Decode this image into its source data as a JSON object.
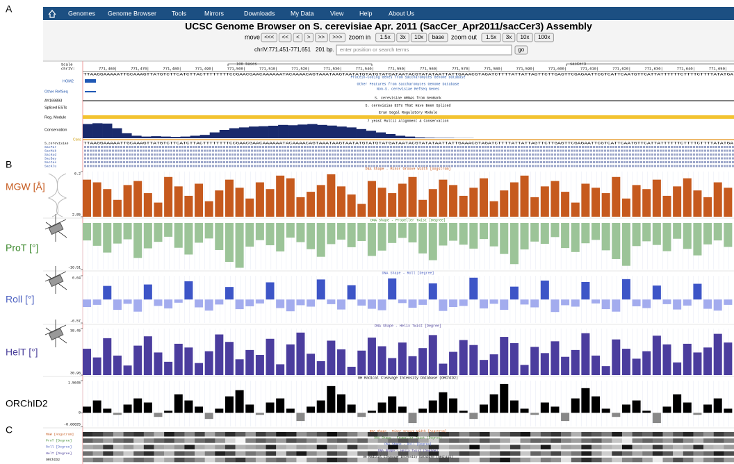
{
  "panel_labels": [
    "A",
    "B",
    "C"
  ],
  "nav": {
    "items": [
      "Genomes",
      "Genome Browser",
      "Tools",
      "Mirrors",
      "Downloads",
      "My Data",
      "View",
      "Help",
      "About Us"
    ]
  },
  "header": {
    "title": "UCSC Genome Browser on S. cerevisiae Apr. 2011 (SacCer_Apr2011/sacCer3) Assembly"
  },
  "controls": {
    "move_label": "move",
    "move_buttons": [
      "<<<",
      "<<",
      "<",
      ">",
      ">>",
      ">>>"
    ],
    "zoom_in_label": "zoom in",
    "zoom_in_buttons": [
      "1.5x",
      "3x",
      "10x",
      "base"
    ],
    "zoom_out_label": "zoom out",
    "zoom_out_buttons": [
      "1.5x",
      "3x",
      "10x",
      "100x"
    ],
    "position": "chrIV:771,451-771,651",
    "size": "201 bp.",
    "search_placeholder": "enter position or search terms",
    "go": "go"
  },
  "browser": {
    "scale_label": "Scale",
    "chrom_label": "chrIV:",
    "scale_bar": "100 bases",
    "assembly": "sacCer3",
    "ruler": [
      "771,460|",
      "771,470|",
      "771,480|",
      "771,490|",
      "771,500|",
      "771,510|",
      "771,520|",
      "771,530|",
      "771,540|",
      "771,550|",
      "771,560|",
      "771,570|",
      "771,580|",
      "771,590|",
      "771,600|",
      "771,610|",
      "771,620|",
      "771,630|",
      "771,640|",
      "771,650|"
    ],
    "left_labels": [
      "HOM2",
      "Other RefSeq",
      "AY169893",
      "Spliced ESTs",
      "Reg. Module",
      "Conservation"
    ],
    "track_titles": [
      "Protein-Coding Genes from Saccharomyces Genome Database",
      "Other Features from Saccharomyces Genome Database",
      "Non-S. cerevisiae RefSeq Genes",
      "S. cerevisiae mRNAs from GenBank",
      "S. cerevisiae ESTs That Have Been Spliced",
      "Eran Segal Regulatory Module",
      "7 yeast Multiz Alignment & Conservation"
    ],
    "conservation": {
      "ylim": [
        0,
        1
      ],
      "color": "#1a2a6c",
      "values": [
        0.85,
        0.9,
        0.88,
        0.6,
        0.3,
        0.15,
        0.1,
        0.12,
        0.1,
        0.08,
        0.1,
        0.15,
        0.2,
        0.35,
        0.5,
        0.6,
        0.65,
        0.7,
        0.72,
        0.75,
        0.8,
        0.78,
        0.82,
        0.85,
        0.8,
        0.76,
        0.7,
        0.65,
        0.55,
        0.45,
        0.35,
        0.25,
        0.15,
        0.1,
        0.05,
        0.03,
        0.02,
        0.02,
        0.01,
        0.01
      ]
    },
    "cons_label": "Cons",
    "alignment": {
      "species": [
        "S_cerevisiae",
        "SacPar",
        "SacMik",
        "SacKud",
        "SacBay",
        "SacCas",
        "SacKlu"
      ],
      "sequence": "TTAAGGAAAAATTGCAAAGTTATGTCTTCATCTTACTTTTTTTTCCGAACGAACAAAAAATACAAAACAGTAAATAAGTAATATGTATGTATGATAATACGTATATAATTATTGAAACGTAGATCTTTTATTATTAGTTCTTGAGTTCGAGAATTCGTCATTCAATGTTCATTATTTTTTCTTTTCTTTTATATGA"
    }
  },
  "shape_tracks": [
    {
      "name": "MGW [Å]",
      "label": "MGW [Angstrom]",
      "title": "DNA Shape - Minor Groove Width [Angstrom]",
      "color": "#c65a1e",
      "name_color": "#c65a1e",
      "ylim": [
        2.85,
        6.2
      ],
      "yticks": [
        6.2,
        2.85
      ],
      "values": [
        5.6,
        5.4,
        4.9,
        4.1,
        5.2,
        5.5,
        4.6,
        3.9,
        5.8,
        5.1,
        4.4,
        5.3,
        4.0,
        4.8,
        5.6,
        5.0,
        4.2,
        5.4,
        4.9,
        5.9,
        5.7,
        4.3,
        4.7,
        5.2,
        6.0,
        5.1,
        4.5,
        3.8,
        5.5,
        5.0,
        4.6,
        5.3,
        5.8,
        4.1,
        4.9,
        5.6,
        5.2,
        4.4,
        5.0,
        5.7,
        4.0,
        4.8,
        5.4,
        5.9,
        4.3,
        5.1,
        5.5,
        4.7,
        3.9,
        5.3,
        5.0,
        4.6,
        5.8,
        4.2,
        5.2,
        4.9,
        5.6,
        4.4,
        5.1,
        5.7,
        4.8,
        4.3,
        5.4,
        5.0
      ]
    },
    {
      "name": "ProT [°]",
      "label": "ProT [Degree]",
      "title": "DNA Shape - Propeller Twist [Degree]",
      "color": "#9cc498",
      "name_color": "#3e8a2e",
      "ylim": [
        -16.51,
        0
      ],
      "yticks": [
        -16.51
      ],
      "values": [
        -6.2,
        -8.1,
        -10.5,
        -7.3,
        -5.8,
        -12.4,
        -9.0,
        -6.7,
        -4.9,
        -8.8,
        -11.2,
        -7.0,
        -5.5,
        -9.6,
        -13.8,
        -15.9,
        -8.4,
        -6.1,
        -7.9,
        -10.1,
        -5.2,
        -6.8,
        -9.3,
        -12.0,
        -7.5,
        -5.9,
        -8.6,
        -6.4,
        -11.7,
        -9.8,
        -7.1,
        -5.3,
        -6.9,
        -10.8,
        -13.2,
        -8.0,
        -6.3,
        -7.7,
        -9.1,
        -5.7,
        -8.3,
        -11.0,
        -14.6,
        -9.4,
        -6.6,
        -7.4,
        -5.0,
        -8.9,
        -10.3,
        -7.2,
        -6.0,
        -9.7,
        -12.8,
        -15.2,
        -8.2,
        -6.5,
        -7.8,
        -10.0,
        -5.6,
        -9.2,
        -11.5,
        -7.6,
        -6.2,
        -8.5
      ]
    },
    {
      "name": "Roll [°]",
      "label": "Roll [Degree]",
      "title": "DNA Shape - Roll [Degree]",
      "color": "#3d55c7",
      "negative_color": "#a3acee",
      "name_color": "#4a5fc1",
      "ylim": [
        -6.57,
        6.64
      ],
      "yticks": [
        6.64,
        -6.57
      ],
      "values": [
        -2.1,
        -1.5,
        3.8,
        -2.9,
        -1.2,
        -3.4,
        4.2,
        -1.8,
        -2.5,
        -0.9,
        5.1,
        -2.2,
        -3.1,
        -1.4,
        3.5,
        -2.7,
        -1.9,
        -1.1,
        4.8,
        -2.4,
        -3.3,
        -1.6,
        -2.0,
        5.6,
        -1.3,
        -2.8,
        4.0,
        -1.7,
        -2.6,
        -3.0,
        5.9,
        -1.0,
        -2.3,
        -1.5,
        4.5,
        -3.2,
        -2.1,
        -1.8,
        6.1,
        -2.5,
        -1.2,
        -2.9,
        3.6,
        -1.4,
        -2.2,
        5.3,
        -3.5,
        -1.6,
        -2.0,
        4.9,
        -1.1,
        -2.7,
        -3.4,
        5.7,
        -1.9,
        -2.4,
        3.9,
        -1.3,
        -2.8,
        -1.7,
        4.4,
        -2.6,
        -3.1,
        -1.5
      ]
    },
    {
      "name": "HelT [°]",
      "label": "HelT [Degree]",
      "title": "DNA Shape - Helix Twist [Degree]",
      "color": "#4b3d9e",
      "name_color": "#4a3f9a",
      "ylim": [
        30.96,
        38.45
      ],
      "yticks": [
        38.45,
        30.96
      ],
      "values": [
        35.2,
        33.8,
        36.9,
        34.1,
        32.5,
        35.7,
        37.2,
        34.6,
        33.1,
        36.0,
        35.4,
        32.9,
        34.8,
        37.5,
        36.3,
        33.5,
        35.0,
        34.2,
        36.8,
        32.7,
        35.9,
        37.8,
        34.4,
        33.2,
        36.5,
        35.1,
        32.3,
        34.9,
        37.0,
        35.6,
        33.7,
        36.2,
        34.0,
        35.3,
        37.4,
        32.8,
        34.7,
        36.6,
        35.8,
        33.4,
        34.3,
        37.1,
        36.1,
        32.6,
        35.5,
        34.5,
        36.4,
        33.9,
        35.0,
        37.7,
        34.1,
        32.4,
        36.7,
        35.2,
        33.6,
        34.8,
        37.3,
        35.9,
        33.0,
        36.0,
        34.6,
        35.4,
        37.6,
        36.2
      ]
    },
    {
      "name": "ORChID2",
      "label": "ORChID2",
      "title": "OH Radical Cleavage Intensity Database (ORChID2)",
      "color": "#000000",
      "negative_color": "#888888",
      "name_color": "#000000",
      "ylim": [
        -0.66625,
        1.5645
      ],
      "yticks": [
        1.5645,
        0,
        -0.66625
      ],
      "values": [
        0.3,
        0.6,
        0.2,
        -0.1,
        0.4,
        0.7,
        0.5,
        -0.2,
        0.1,
        0.9,
        0.6,
        0.3,
        -0.3,
        0.2,
        0.8,
        1.1,
        0.4,
        -0.1,
        0.5,
        0.7,
        0.2,
        -0.4,
        0.3,
        0.6,
        1.3,
        0.9,
        0.4,
        -0.2,
        0.1,
        0.5,
        0.8,
        0.3,
        -0.5,
        0.2,
        0.6,
        1.0,
        0.7,
        0.1,
        -0.3,
        0.4,
        0.9,
        1.4,
        0.6,
        0.2,
        -0.1,
        0.5,
        0.3,
        -0.4,
        0.7,
        1.2,
        0.8,
        0.2,
        -0.2,
        0.4,
        0.6,
        0.1,
        -0.5,
        0.3,
        0.9,
        0.5,
        -0.1,
        0.4,
        0.7,
        0.2
      ]
    }
  ]
}
